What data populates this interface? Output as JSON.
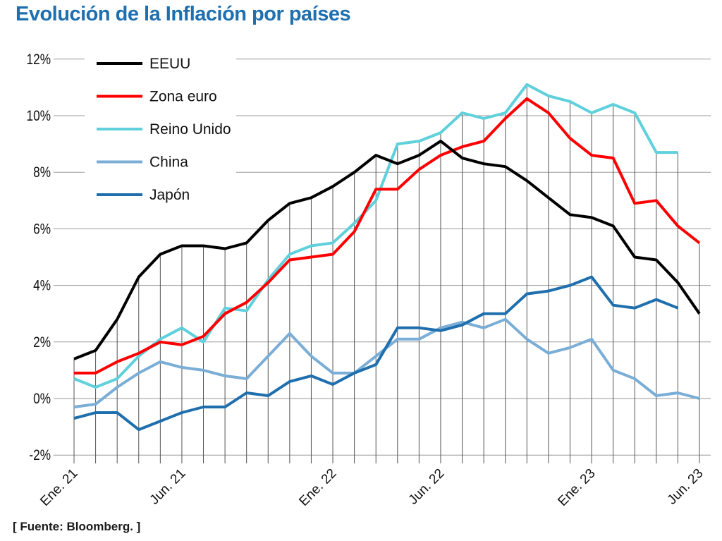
{
  "title": "Evolución de la Inflación por países",
  "source": "[ Fuente: Bloomberg. ]",
  "chart_data": {
    "type": "line",
    "title": "Evolución de la Inflación por países",
    "xlabel": "",
    "ylabel": "",
    "ylim": [
      -2,
      12
    ],
    "yticks": [
      "-2%",
      "0%",
      "2%",
      "4%",
      "6%",
      "8%",
      "10%",
      "12%"
    ],
    "ytick_values": [
      -2,
      0,
      2,
      4,
      6,
      8,
      10,
      12
    ],
    "grid": true,
    "legend_position": "top-left",
    "x": [
      "Ene. 21",
      "Feb. 21",
      "Mar. 21",
      "Abr. 21",
      "May. 21",
      "Jun. 21",
      "Jul. 21",
      "Ago. 21",
      "Sep. 21",
      "Oct. 21",
      "Nov. 21",
      "Dic. 21",
      "Ene. 22",
      "Feb. 22",
      "Mar. 22",
      "Abr. 22",
      "May. 22",
      "Jun. 22",
      "Jul. 22",
      "Ago. 22",
      "Sep. 22",
      "Oct. 22",
      "Nov. 22",
      "Dic. 22",
      "Ene. 23",
      "Feb. 23",
      "Mar. 23",
      "Abr. 23",
      "May. 23",
      "Jun. 23"
    ],
    "xtick_labels": [
      {
        "index": 0,
        "label": "Ene. 21"
      },
      {
        "index": 5,
        "label": "Jun. 21"
      },
      {
        "index": 12,
        "label": "Ene. 22"
      },
      {
        "index": 17,
        "label": "Jun. 22"
      },
      {
        "index": 24,
        "label": "Ene. 23"
      },
      {
        "index": 29,
        "label": "Jun. 23"
      }
    ],
    "series": [
      {
        "name": "EEUU",
        "color": "#000000",
        "values": [
          1.4,
          1.7,
          2.8,
          4.3,
          5.1,
          5.4,
          5.4,
          5.3,
          5.5,
          6.3,
          6.9,
          7.1,
          7.5,
          8.0,
          8.6,
          8.3,
          8.6,
          9.1,
          8.5,
          8.3,
          8.2,
          7.7,
          7.1,
          6.5,
          6.4,
          6.1,
          5.0,
          4.9,
          4.1,
          3.0
        ]
      },
      {
        "name": "Zona euro",
        "color": "#ff0000",
        "values": [
          0.9,
          0.9,
          1.3,
          1.6,
          2.0,
          1.9,
          2.2,
          3.0,
          3.4,
          4.1,
          4.9,
          5.0,
          5.1,
          5.9,
          7.4,
          7.4,
          8.1,
          8.6,
          8.9,
          9.1,
          9.9,
          10.6,
          10.1,
          9.2,
          8.6,
          8.5,
          6.9,
          7.0,
          6.1,
          5.5
        ]
      },
      {
        "name": "Reino Unido",
        "color": "#5fd0dc",
        "values": [
          0.7,
          0.4,
          0.7,
          1.5,
          2.1,
          2.5,
          2.0,
          3.2,
          3.1,
          4.2,
          5.1,
          5.4,
          5.5,
          6.2,
          7.0,
          9.0,
          9.1,
          9.4,
          10.1,
          9.9,
          10.1,
          11.1,
          10.7,
          10.5,
          10.1,
          10.4,
          10.1,
          8.7,
          8.7,
          null
        ]
      },
      {
        "name": "China",
        "color": "#7aaed6",
        "values": [
          -0.3,
          -0.2,
          0.4,
          0.9,
          1.3,
          1.1,
          1.0,
          0.8,
          0.7,
          1.5,
          2.3,
          1.5,
          0.9,
          0.9,
          1.5,
          2.1,
          2.1,
          2.5,
          2.7,
          2.5,
          2.8,
          2.1,
          1.6,
          1.8,
          2.1,
          1.0,
          0.7,
          0.1,
          0.2,
          0.0
        ]
      },
      {
        "name": "Japón",
        "color": "#1f6fae",
        "values": [
          -0.7,
          -0.5,
          -0.5,
          -1.1,
          -0.8,
          -0.5,
          -0.3,
          -0.3,
          0.2,
          0.1,
          0.6,
          0.8,
          0.5,
          0.9,
          1.2,
          2.5,
          2.5,
          2.4,
          2.6,
          3.0,
          3.0,
          3.7,
          3.8,
          4.0,
          4.3,
          3.3,
          3.2,
          3.5,
          3.2,
          null
        ]
      }
    ]
  }
}
